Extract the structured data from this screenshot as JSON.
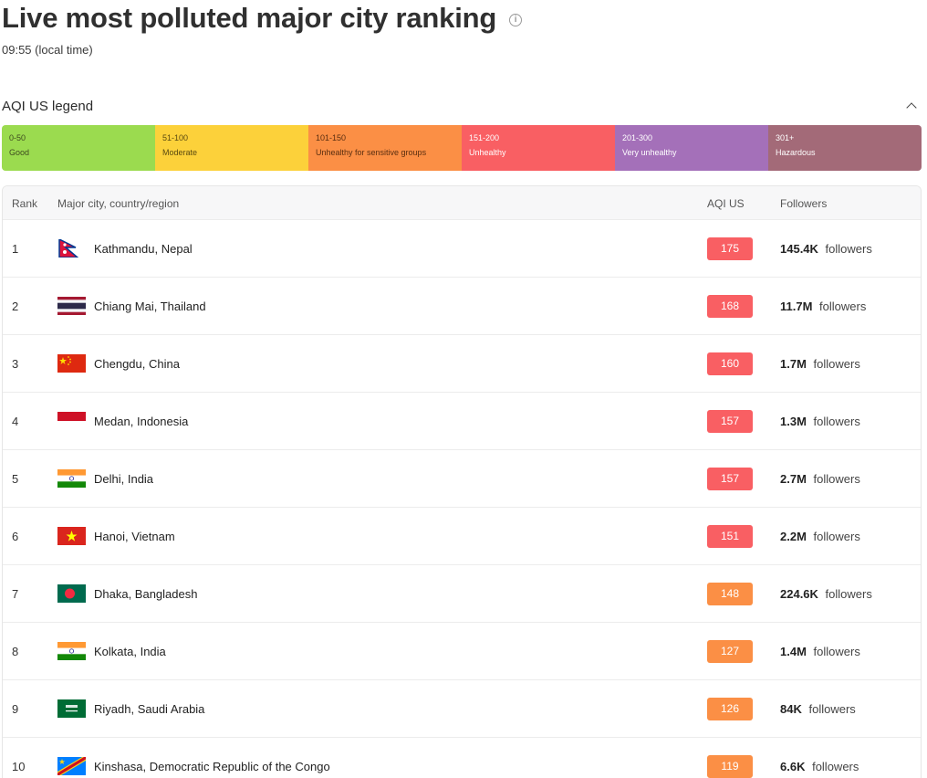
{
  "header": {
    "title": "Live most polluted major city ranking",
    "local_time": "09:55 (local time)"
  },
  "legend": {
    "title": "AQI US legend",
    "segments": [
      {
        "range": "0-50",
        "label": "Good",
        "color": "#9bdb4f",
        "text_color": "#3d4a1f"
      },
      {
        "range": "51-100",
        "label": "Moderate",
        "color": "#fcd13a",
        "text_color": "#5a4a10"
      },
      {
        "range": "101-150",
        "label": "Unhealthy for sensitive groups",
        "color": "#fb8f45",
        "text_color": "#5a2e10"
      },
      {
        "range": "151-200",
        "label": "Unhealthy",
        "color": "#f95f63",
        "text_color": "#ffffff"
      },
      {
        "range": "201-300",
        "label": "Very unhealthy",
        "color": "#a470b9",
        "text_color": "#ffffff"
      },
      {
        "range": "301+",
        "label": "Hazardous",
        "color": "#a36a78",
        "text_color": "#ffffff"
      }
    ]
  },
  "table": {
    "headers": {
      "rank": "Rank",
      "city": "Major city, country/region",
      "aqi": "AQI US",
      "followers": "Followers"
    },
    "followers_suffix": "followers",
    "rows": [
      {
        "rank": "1",
        "flag": "nepal",
        "city": "Kathmandu, Nepal",
        "aqi": "175",
        "aqi_color": "#f95f63",
        "followers": "145.4K"
      },
      {
        "rank": "2",
        "flag": "thailand",
        "city": "Chiang Mai, Thailand",
        "aqi": "168",
        "aqi_color": "#f95f63",
        "followers": "11.7M"
      },
      {
        "rank": "3",
        "flag": "china",
        "city": "Chengdu, China",
        "aqi": "160",
        "aqi_color": "#f95f63",
        "followers": "1.7M"
      },
      {
        "rank": "4",
        "flag": "indonesia",
        "city": "Medan, Indonesia",
        "aqi": "157",
        "aqi_color": "#f95f63",
        "followers": "1.3M"
      },
      {
        "rank": "5",
        "flag": "india",
        "city": "Delhi, India",
        "aqi": "157",
        "aqi_color": "#f95f63",
        "followers": "2.7M"
      },
      {
        "rank": "6",
        "flag": "vietnam",
        "city": "Hanoi, Vietnam",
        "aqi": "151",
        "aqi_color": "#f95f63",
        "followers": "2.2M"
      },
      {
        "rank": "7",
        "flag": "bangladesh",
        "city": "Dhaka, Bangladesh",
        "aqi": "148",
        "aqi_color": "#fb8f45",
        "followers": "224.6K"
      },
      {
        "rank": "8",
        "flag": "india",
        "city": "Kolkata, India",
        "aqi": "127",
        "aqi_color": "#fb8f45",
        "followers": "1.4M"
      },
      {
        "rank": "9",
        "flag": "saudi-arabia",
        "city": "Riyadh, Saudi Arabia",
        "aqi": "126",
        "aqi_color": "#fb8f45",
        "followers": "84K"
      },
      {
        "rank": "10",
        "flag": "dr-congo",
        "city": "Kinshasa, Democratic Republic of the Congo",
        "aqi": "119",
        "aqi_color": "#fb8f45",
        "followers": "6.6K"
      }
    ]
  }
}
